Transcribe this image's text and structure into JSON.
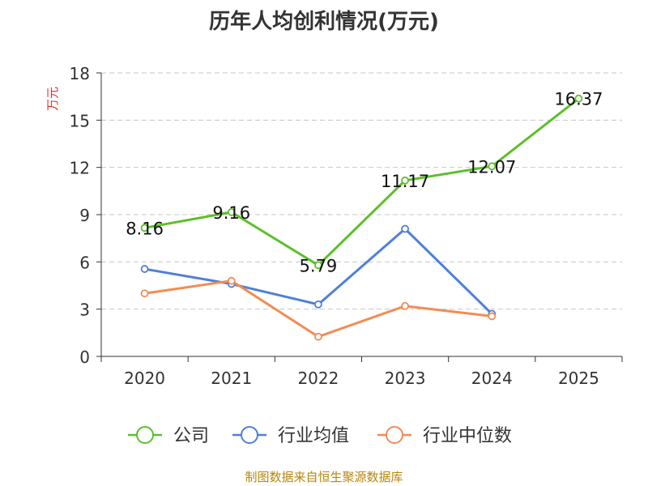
{
  "chart_data": {
    "type": "line",
    "title": "历年人均创利情况(万元)",
    "ylabel": "万元",
    "xlabel": "",
    "categories": [
      "2020",
      "2021",
      "2022",
      "2023",
      "2024",
      "2025"
    ],
    "ylim": [
      0,
      18
    ],
    "yticks": [
      0,
      3,
      6,
      9,
      12,
      15,
      18
    ],
    "grid": true,
    "legend_position": "bottom",
    "series": [
      {
        "name": "公司",
        "color": "#5cbf2a",
        "values": [
          8.16,
          9.16,
          5.79,
          11.17,
          12.07,
          16.37
        ],
        "show_labels": true
      },
      {
        "name": "行业均值",
        "color": "#4f7fd9",
        "values": [
          5.55,
          4.6,
          3.3,
          8.1,
          2.7,
          null
        ],
        "show_labels": false
      },
      {
        "name": "行业中位数",
        "color": "#f28c55",
        "values": [
          4.0,
          4.8,
          1.25,
          3.2,
          2.55,
          null
        ],
        "show_labels": false
      }
    ],
    "data_labels": [
      "8.16",
      "9.16",
      "5.79",
      "11.17",
      "12.07",
      "16.37"
    ]
  },
  "source": "制图数据来自恒生聚源数据库"
}
